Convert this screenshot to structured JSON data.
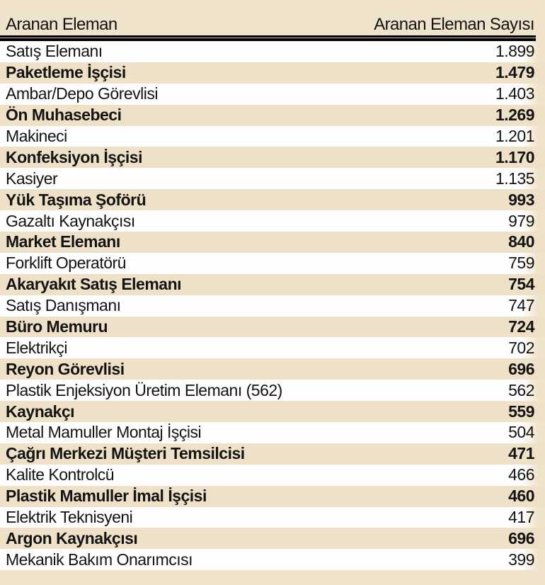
{
  "colors": {
    "page_background": "#f0e3cb",
    "highlight_row_background": "#efe1c8",
    "plain_row_background": "#fefefe",
    "text": "#131313",
    "header_rule": "#000000"
  },
  "table": {
    "columns": [
      {
        "label": "Aranan Eleman"
      },
      {
        "label": "Aranan Eleman Sayısı"
      }
    ],
    "rows": [
      {
        "name": "Satış Elemanı",
        "count": "1.899",
        "highlight": false
      },
      {
        "name": "Paketleme İşçisi",
        "count": "1.479",
        "highlight": true
      },
      {
        "name": "Ambar/Depo Görevlisi",
        "count": "1.403",
        "highlight": false
      },
      {
        "name": "Ön Muhasebeci",
        "count": "1.269",
        "highlight": true
      },
      {
        "name": "Makineci",
        "count": "1.201",
        "highlight": false
      },
      {
        "name": "Konfeksiyon İşçisi",
        "count": "1.170",
        "highlight": true
      },
      {
        "name": "Kasiyer",
        "count": "1.135",
        "highlight": false
      },
      {
        "name": "Yük Taşıma Şoförü",
        "count": "993",
        "highlight": true
      },
      {
        "name": "Gazaltı Kaynakçısı",
        "count": "979",
        "highlight": false
      },
      {
        "name": "Market Elemanı",
        "count": "840",
        "highlight": true
      },
      {
        "name": "Forklift Operatörü",
        "count": "759",
        "highlight": false
      },
      {
        "name": "Akaryakıt Satış Elemanı",
        "count": "754",
        "highlight": true
      },
      {
        "name": "Satış Danışmanı",
        "count": "747",
        "highlight": false
      },
      {
        "name": "Büro Memuru",
        "count": "724",
        "highlight": true
      },
      {
        "name": "Elektrikçi",
        "count": "702",
        "highlight": false
      },
      {
        "name": "Reyon Görevlisi",
        "count": "696",
        "highlight": true
      },
      {
        "name": "Plastik Enjeksiyon Üretim Elemanı (562)",
        "count": "562",
        "highlight": false
      },
      {
        "name": "Kaynakçı",
        "count": "559",
        "highlight": true
      },
      {
        "name": "Metal Mamuller Montaj İşçisi",
        "count": "504",
        "highlight": false
      },
      {
        "name": "Çağrı Merkezi Müşteri Temsilcisi",
        "count": "471",
        "highlight": true
      },
      {
        "name": "Kalite Kontrolcü",
        "count": "466",
        "highlight": false
      },
      {
        "name": "Plastik Mamuller İmal İşçisi",
        "count": "460",
        "highlight": true
      },
      {
        "name": "Elektrik Teknisyeni",
        "count": "417",
        "highlight": false
      },
      {
        "name": "Argon Kaynakçısı",
        "count": "696",
        "highlight": true
      },
      {
        "name": "Mekanik Bakım Onarımcısı",
        "count": "399",
        "highlight": false
      }
    ]
  }
}
